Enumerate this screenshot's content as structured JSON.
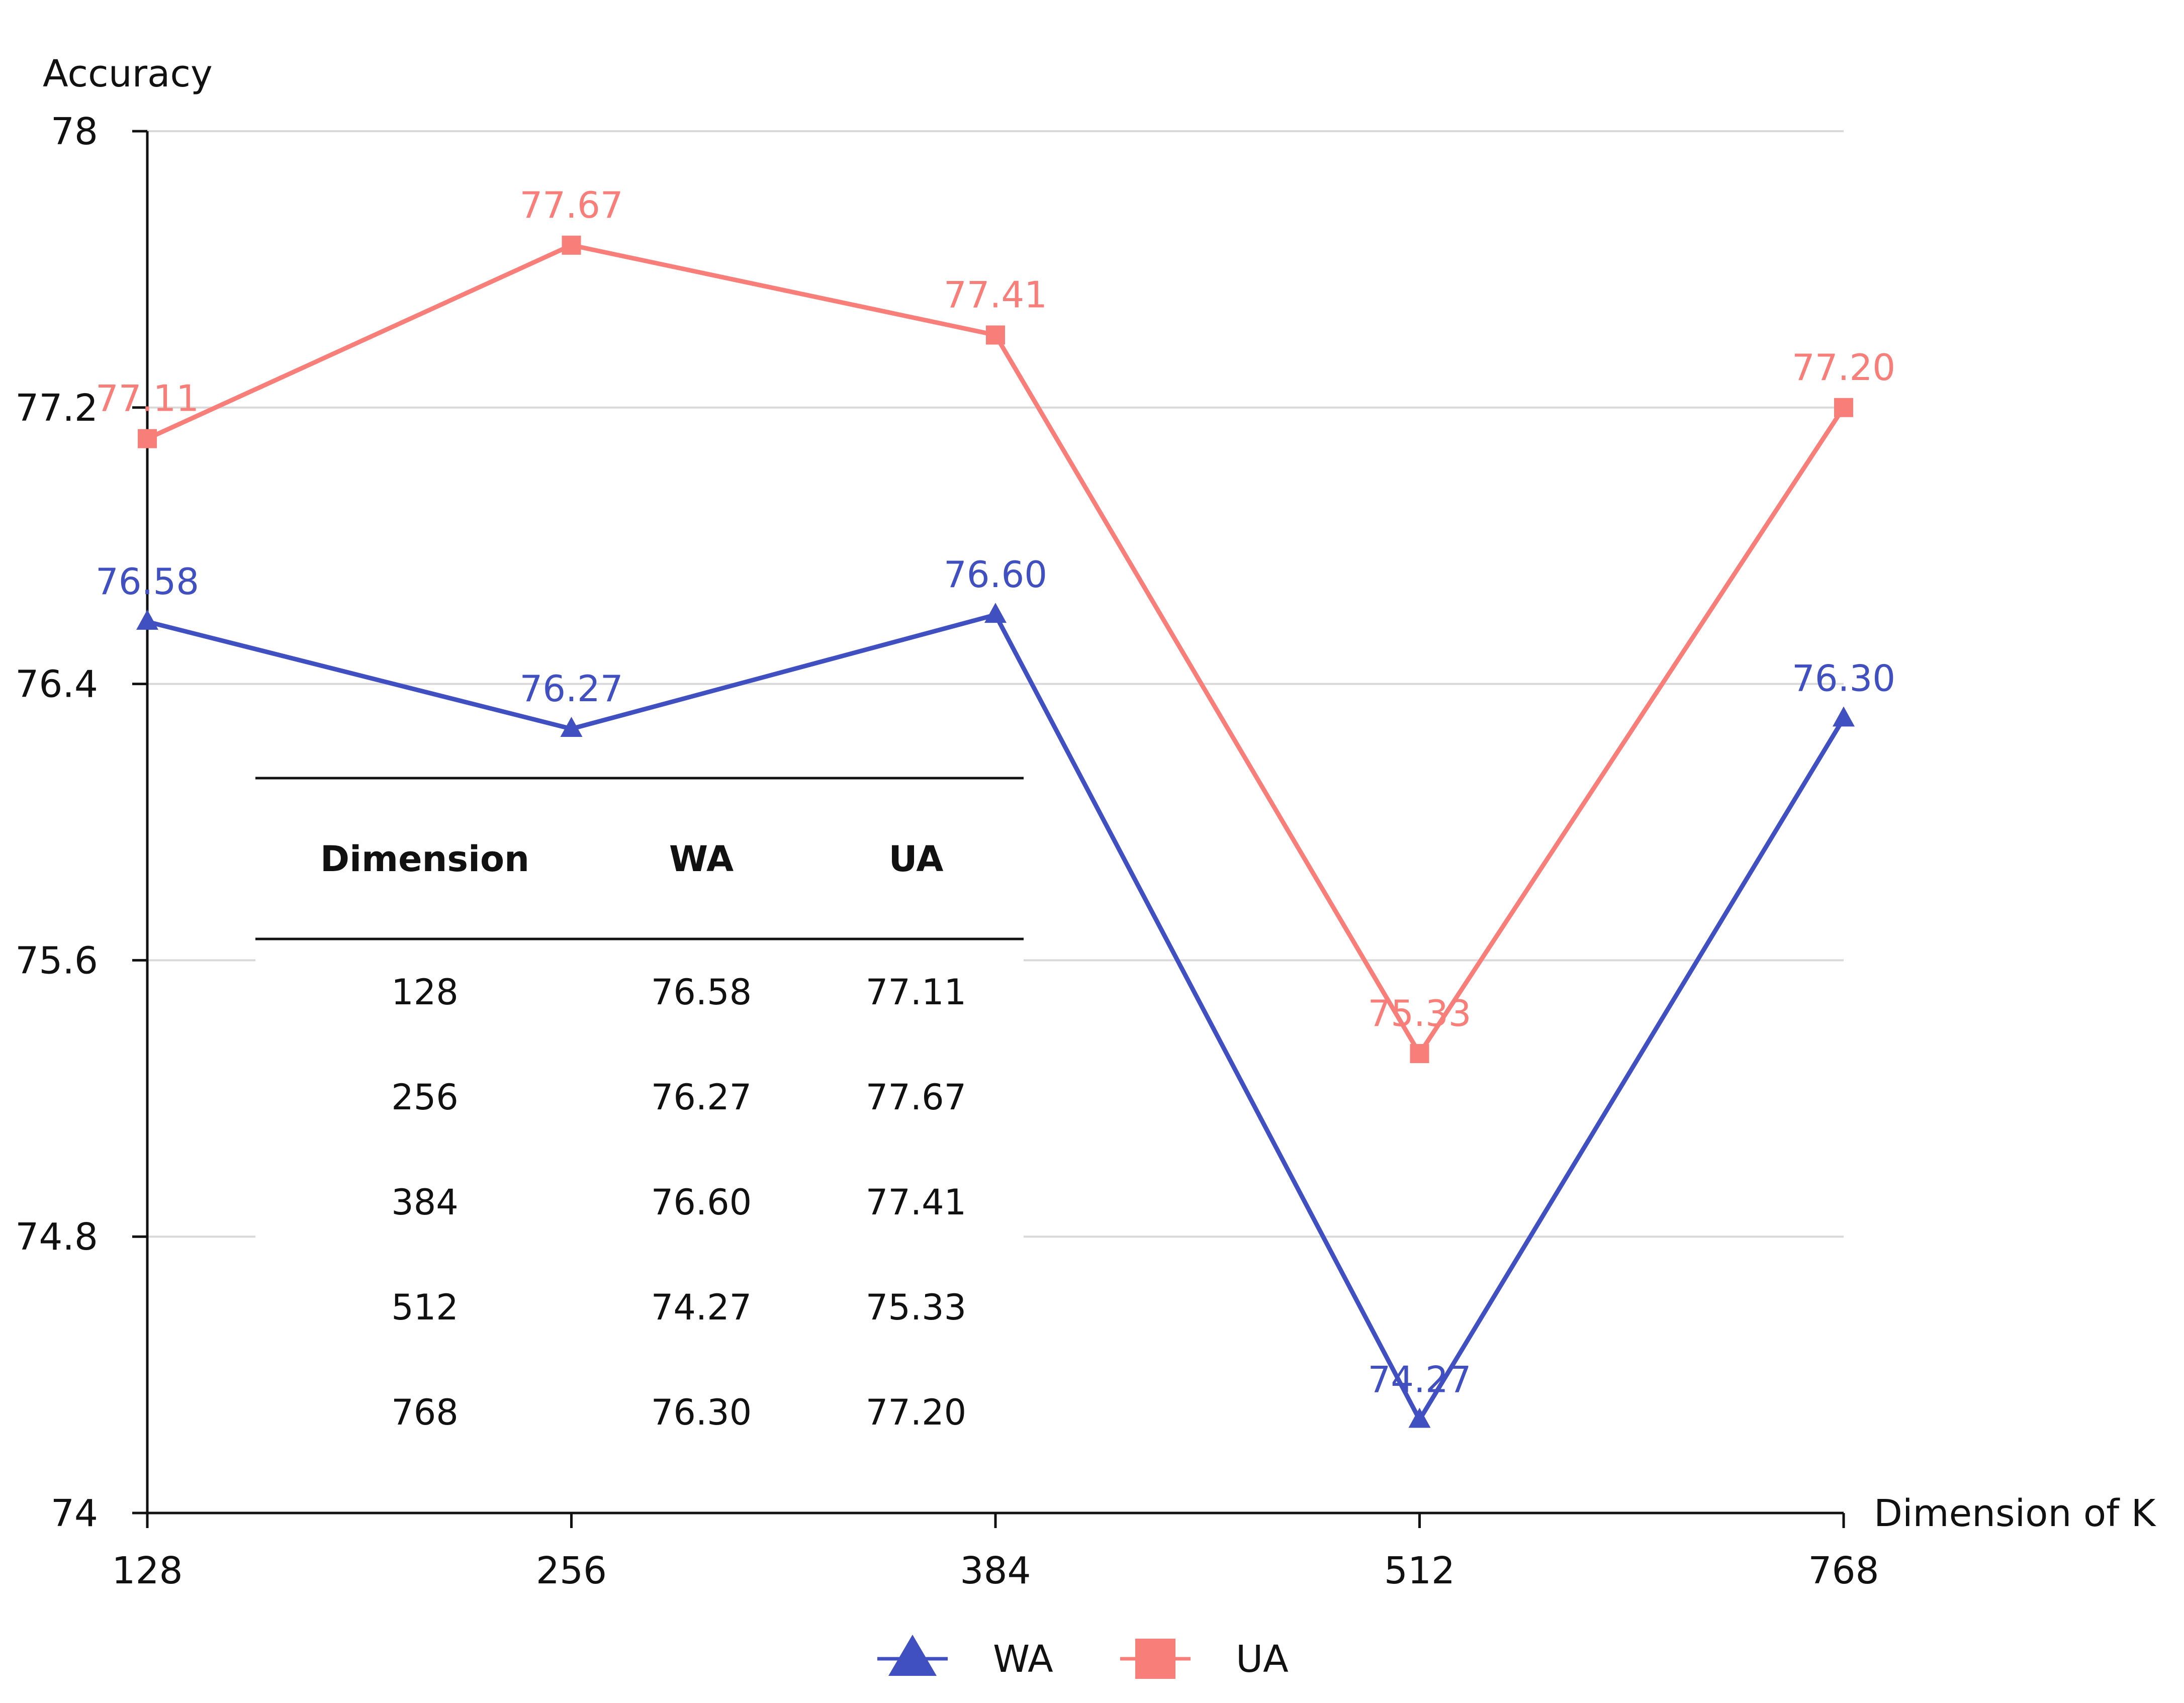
{
  "chart_data": {
    "type": "line",
    "ylabel": "Accuracy",
    "xlabel": "Dimension of K",
    "categories": [
      "128",
      "256",
      "384",
      "512",
      "768"
    ],
    "ylim": [
      74,
      78
    ],
    "yticks": [
      "74",
      "74.8",
      "75.6",
      "76.4",
      "77.2",
      "78"
    ],
    "grid": "horizontal",
    "legend_position": "bottom-center",
    "series": [
      {
        "name": "WA",
        "values": [
          76.58,
          76.27,
          76.6,
          74.27,
          76.3
        ],
        "labels": [
          "76.58",
          "76.27",
          "76.60",
          "74.27",
          "76.30"
        ],
        "color": "#4050c0",
        "marker": "triangle"
      },
      {
        "name": "UA",
        "values": [
          77.11,
          77.67,
          77.41,
          75.33,
          77.2
        ],
        "labels": [
          "77.11",
          "77.67",
          "77.41",
          "75.33",
          "77.20"
        ],
        "color": "#f87e7a",
        "marker": "square"
      }
    ],
    "table": {
      "headers": [
        "Dimension",
        "WA",
        "UA"
      ],
      "rows": [
        [
          "128",
          "76.58",
          "77.11"
        ],
        [
          "256",
          "76.27",
          "77.67"
        ],
        [
          "384",
          "76.60",
          "77.41"
        ],
        [
          "512",
          "74.27",
          "75.33"
        ],
        [
          "768",
          "76.30",
          "77.20"
        ]
      ]
    }
  }
}
